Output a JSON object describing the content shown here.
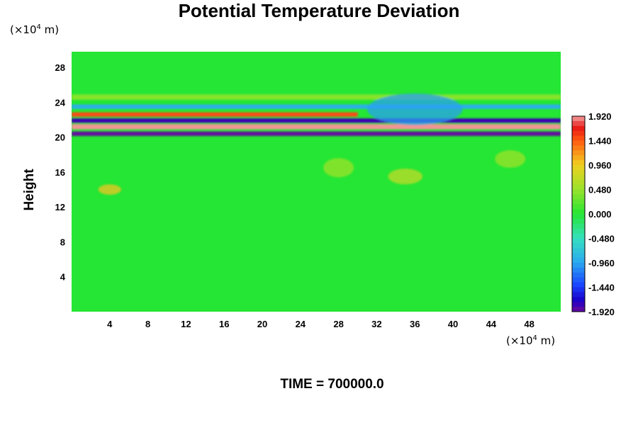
{
  "chart_data": {
    "type": "heatmap",
    "title": "Potential Temperature Deviation",
    "ylabel": "Height",
    "x_unit": {
      "pre": "(×10",
      "exp": "4",
      "post": " m)"
    },
    "y_unit": {
      "pre": "(×10",
      "exp": "4",
      "post": " m)"
    },
    "xlim": [
      0,
      51.3
    ],
    "ylim": [
      0,
      29.8
    ],
    "xticks": [
      "4",
      "8",
      "12",
      "16",
      "20",
      "24",
      "28",
      "32",
      "36",
      "40",
      "44",
      "48"
    ],
    "yticks": [
      "4",
      "8",
      "12",
      "16",
      "20",
      "24",
      "28"
    ],
    "colorbar": {
      "range": [
        -1.92,
        1.92
      ],
      "labels": [
        "1.920",
        "1.440",
        "0.960",
        "0.480",
        "0.000",
        "-0.480",
        "-0.960",
        "-1.440",
        "-1.920"
      ]
    },
    "features": [
      {
        "kind": "band",
        "y_center": 20.4,
        "thickness": 0.5,
        "x_range": [
          0,
          51.3
        ],
        "value": -1.9
      },
      {
        "kind": "band",
        "y_center": 21.2,
        "thickness": 0.6,
        "x_range": [
          0,
          51.3
        ],
        "value": 1.9
      },
      {
        "kind": "band",
        "y_center": 21.9,
        "thickness": 0.5,
        "x_range": [
          0,
          51.3
        ],
        "value": -1.8
      },
      {
        "kind": "band",
        "y_center": 22.6,
        "thickness": 0.5,
        "x_range": [
          0,
          30
        ],
        "value": 1.5
      },
      {
        "kind": "band",
        "y_center": 23.5,
        "thickness": 0.5,
        "x_range": [
          0,
          51.3
        ],
        "value": -0.9
      },
      {
        "kind": "band",
        "y_center": 24.6,
        "thickness": 0.6,
        "x_range": [
          0,
          51.3
        ],
        "value": 0.4
      },
      {
        "kind": "patch",
        "x": 4,
        "y": 14,
        "rx": 1.2,
        "ry": 0.6,
        "value": 1.0
      },
      {
        "kind": "patch",
        "x": 35,
        "y": 15.5,
        "rx": 1.8,
        "ry": 0.9,
        "value": 0.7
      },
      {
        "kind": "patch",
        "x": 46,
        "y": 17.5,
        "rx": 1.6,
        "ry": 1.0,
        "value": 0.5
      },
      {
        "kind": "patch",
        "x": 28,
        "y": 16.5,
        "rx": 1.6,
        "ry": 1.1,
        "value": 0.5
      },
      {
        "kind": "patch",
        "x": 36,
        "y": 23.2,
        "rx": 5,
        "ry": 1.8,
        "value": -1.0
      }
    ]
  },
  "footer": {
    "time_label": "TIME = 700000.0"
  }
}
